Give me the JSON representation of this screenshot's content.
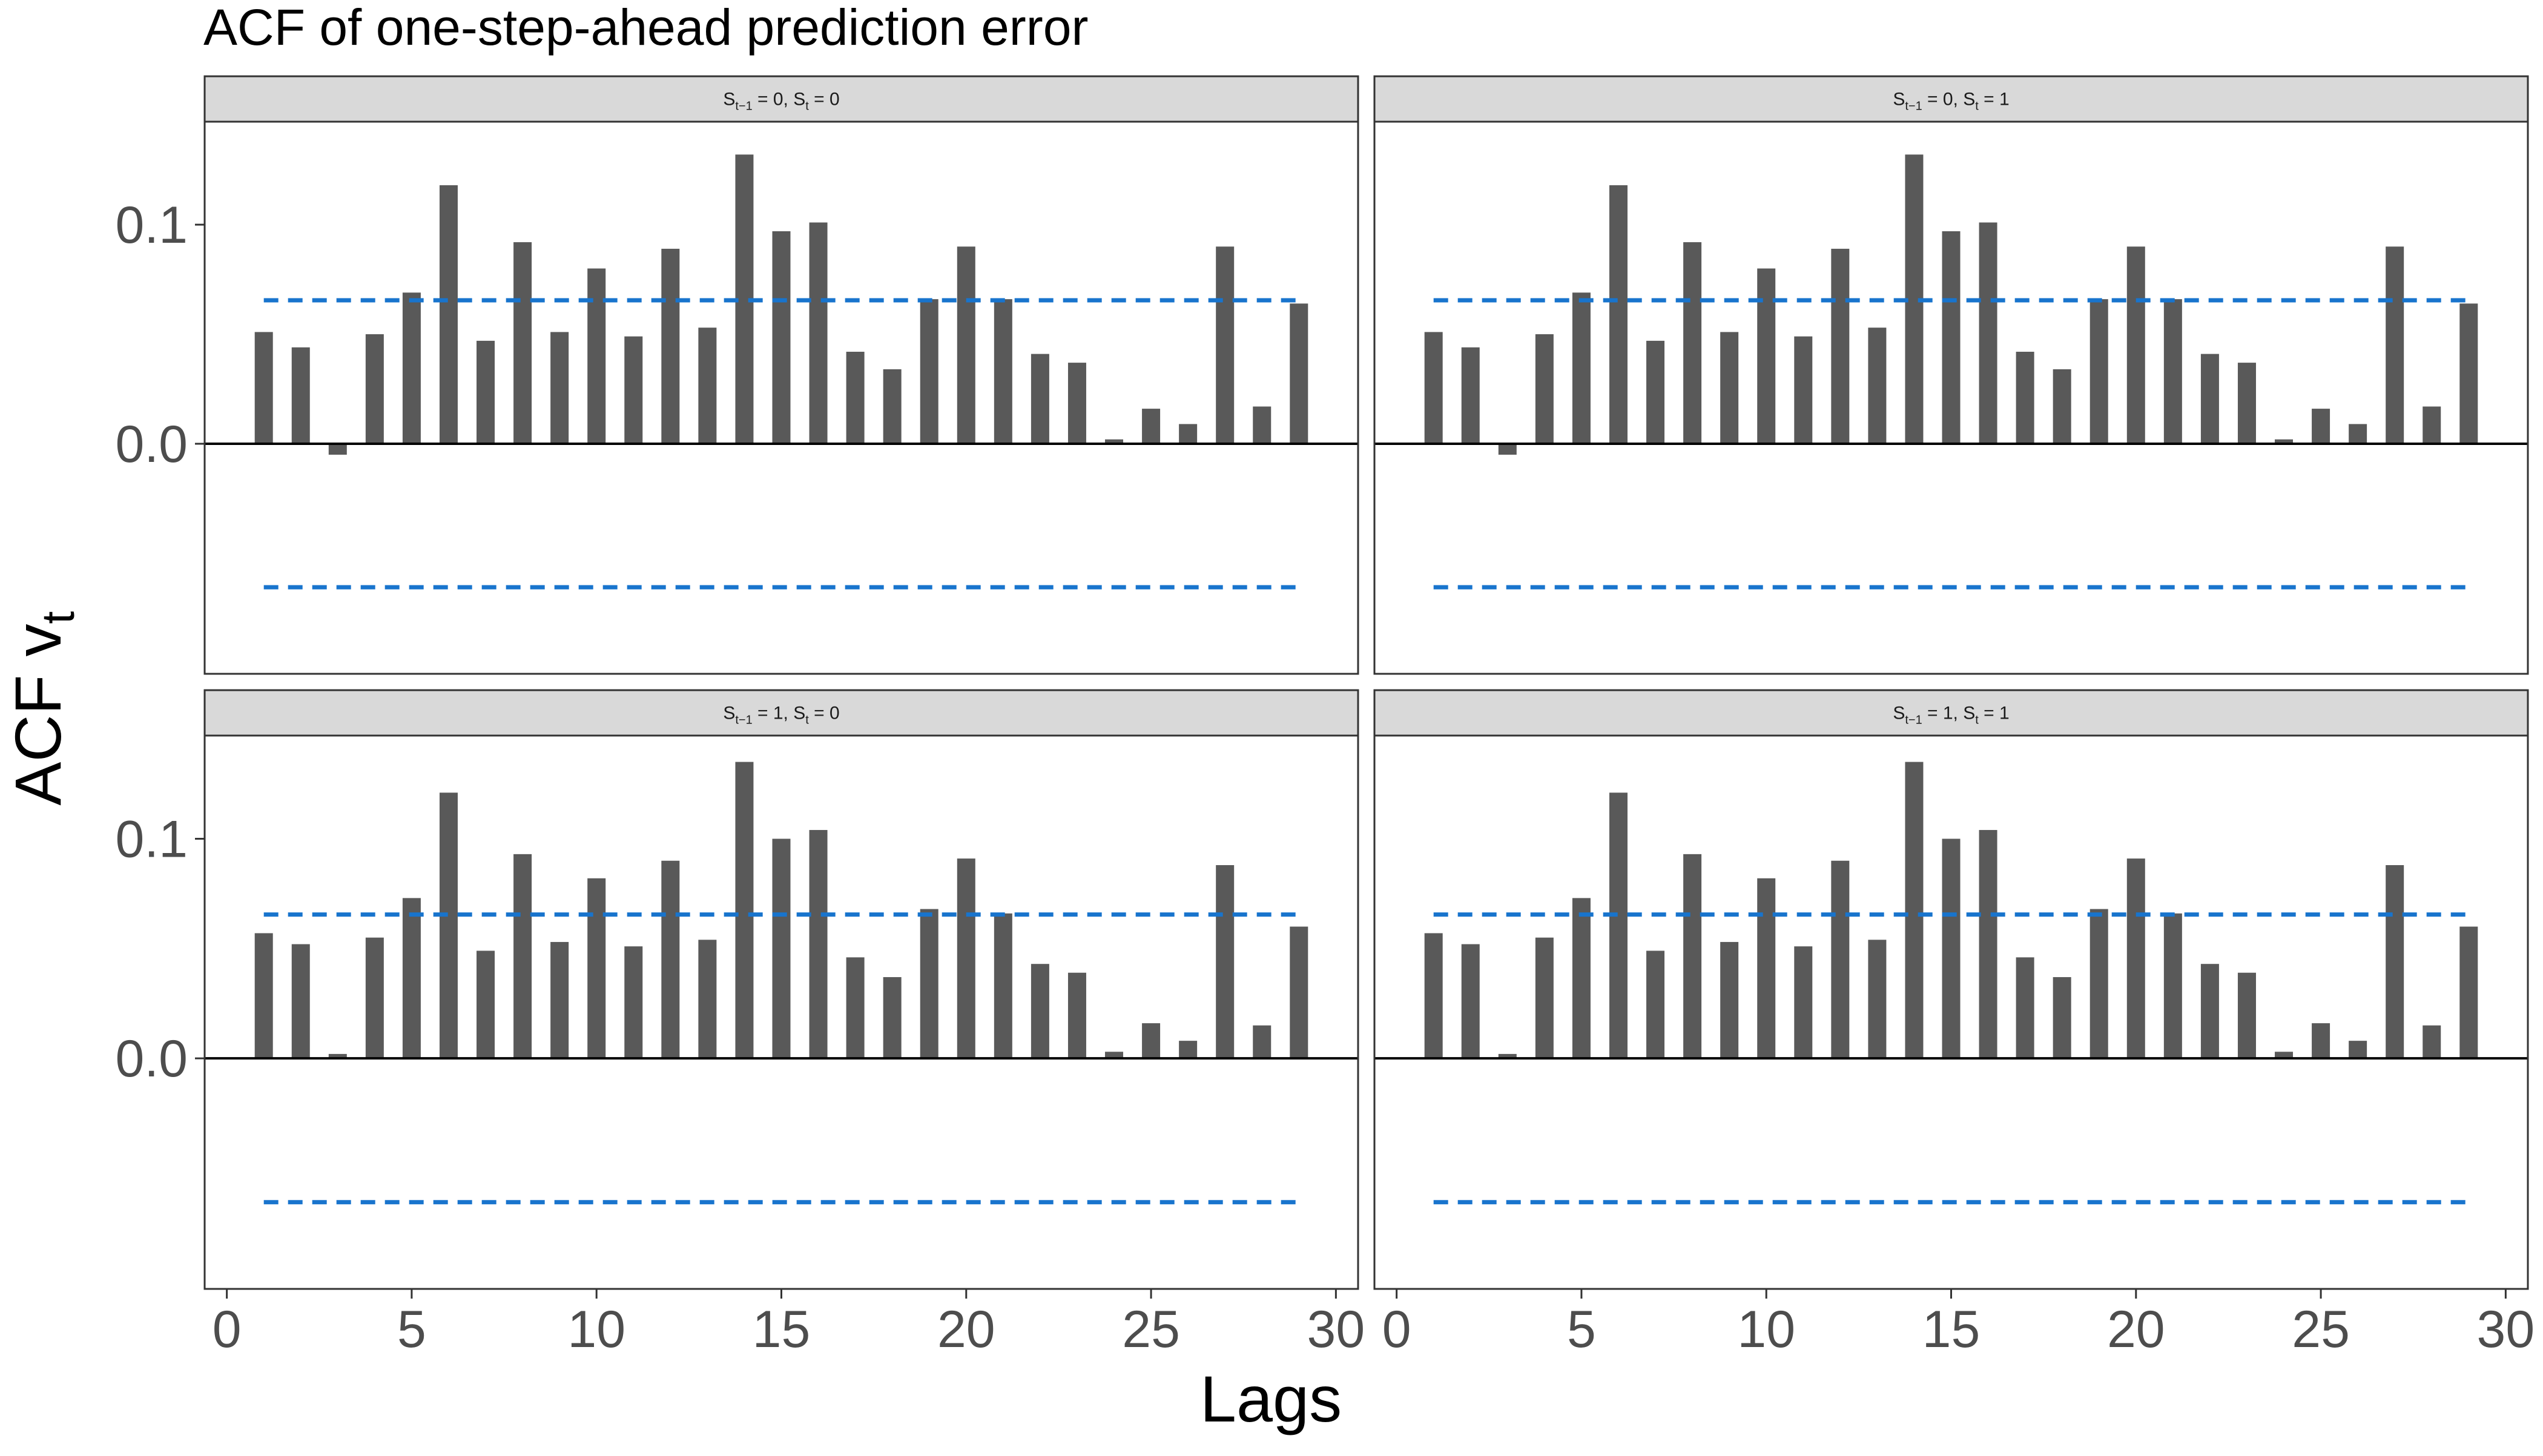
{
  "chart_data": {
    "type": "bar",
    "title": "ACF of one-step-ahead prediction error",
    "xlabel": "Lags",
    "ylabel": "ACF v",
    "ylabel_subscript": "t",
    "xlim": [
      -0.6,
      30.6
    ],
    "ylim": [
      -0.105,
      0.147
    ],
    "x_ticks": [
      0,
      5,
      10,
      15,
      20,
      25,
      30
    ],
    "y_ticks": [
      0.0,
      0.1
    ],
    "y_tick_labels": [
      "0.0",
      "0.1"
    ],
    "grid": false,
    "facet_layout": "2x2",
    "colors": {
      "bars": "#595959",
      "confidence_bounds": "#1874CD",
      "zero_line": "#000000",
      "strip_fill": "#D9D9D9"
    },
    "panels": [
      {
        "strip_label": {
          "a": "S",
          "a_sub": "t−1",
          "b": " = 0, S",
          "b_sub": "t",
          "c": " = 0"
        },
        "ci": [
          0.0655,
          -0.0655
        ],
        "ci_x": [
          1,
          29
        ],
        "lags": [
          1,
          2,
          3,
          4,
          5,
          6,
          7,
          8,
          9,
          10,
          11,
          12,
          13,
          14,
          15,
          16,
          17,
          18,
          19,
          20,
          21,
          22,
          23,
          24,
          25,
          26,
          27,
          28,
          29
        ],
        "values": [
          0.051,
          0.044,
          -0.005,
          0.05,
          0.069,
          0.118,
          0.047,
          0.092,
          0.051,
          0.08,
          0.049,
          0.089,
          0.053,
          0.132,
          0.097,
          0.101,
          0.042,
          0.034,
          0.066,
          0.09,
          0.066,
          0.041,
          0.037,
          0.002,
          0.016,
          0.009,
          0.09,
          0.017,
          0.064
        ]
      },
      {
        "strip_label": {
          "a": "S",
          "a_sub": "t−1",
          "b": " = 0, S",
          "b_sub": "t",
          "c": " = 1"
        },
        "ci": [
          0.0655,
          -0.0655
        ],
        "ci_x": [
          1,
          29
        ],
        "lags": [
          1,
          2,
          3,
          4,
          5,
          6,
          7,
          8,
          9,
          10,
          11,
          12,
          13,
          14,
          15,
          16,
          17,
          18,
          19,
          20,
          21,
          22,
          23,
          24,
          25,
          26,
          27,
          28,
          29
        ],
        "values": [
          0.051,
          0.044,
          -0.005,
          0.05,
          0.069,
          0.118,
          0.047,
          0.092,
          0.051,
          0.08,
          0.049,
          0.089,
          0.053,
          0.132,
          0.097,
          0.101,
          0.042,
          0.034,
          0.066,
          0.09,
          0.066,
          0.041,
          0.037,
          0.002,
          0.016,
          0.009,
          0.09,
          0.017,
          0.064
        ]
      },
      {
        "strip_label": {
          "a": "S",
          "a_sub": "t−1",
          "b": " = 1, S",
          "b_sub": "t",
          "c": " = 0"
        },
        "ci": [
          0.0655,
          -0.0655
        ],
        "ci_x": [
          1,
          29
        ],
        "lags": [
          1,
          2,
          3,
          4,
          5,
          6,
          7,
          8,
          9,
          10,
          11,
          12,
          13,
          14,
          15,
          16,
          17,
          18,
          19,
          20,
          21,
          22,
          23,
          24,
          25,
          26,
          27,
          28,
          29
        ],
        "values": [
          0.057,
          0.052,
          0.002,
          0.055,
          0.073,
          0.121,
          0.049,
          0.093,
          0.053,
          0.082,
          0.051,
          0.09,
          0.054,
          0.135,
          0.1,
          0.104,
          0.046,
          0.037,
          0.068,
          0.091,
          0.066,
          0.043,
          0.039,
          0.003,
          0.016,
          0.008,
          0.088,
          0.015,
          0.06
        ]
      },
      {
        "strip_label": {
          "a": "S",
          "a_sub": "t−1",
          "b": " = 1, S",
          "b_sub": "t",
          "c": " = 1"
        },
        "ci": [
          0.0655,
          -0.0655
        ],
        "ci_x": [
          1,
          29
        ],
        "lags": [
          1,
          2,
          3,
          4,
          5,
          6,
          7,
          8,
          9,
          10,
          11,
          12,
          13,
          14,
          15,
          16,
          17,
          18,
          19,
          20,
          21,
          22,
          23,
          24,
          25,
          26,
          27,
          28,
          29
        ],
        "values": [
          0.057,
          0.052,
          0.002,
          0.055,
          0.073,
          0.121,
          0.049,
          0.093,
          0.053,
          0.082,
          0.051,
          0.09,
          0.054,
          0.135,
          0.1,
          0.104,
          0.046,
          0.037,
          0.068,
          0.091,
          0.066,
          0.043,
          0.039,
          0.003,
          0.016,
          0.008,
          0.088,
          0.015,
          0.06
        ]
      }
    ]
  }
}
